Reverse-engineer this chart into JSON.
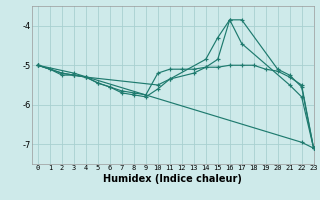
{
  "xlabel": "Humidex (Indice chaleur)",
  "bg_color": "#ceeaea",
  "grid_color": "#a8d0d0",
  "line_color": "#1e7a6e",
  "xlim": [
    -0.5,
    23
  ],
  "ylim": [
    -7.5,
    -3.5
  ],
  "yticks": [
    -7,
    -6,
    -5,
    -4
  ],
  "xticks": [
    0,
    1,
    2,
    3,
    4,
    5,
    6,
    7,
    8,
    9,
    10,
    11,
    12,
    13,
    14,
    15,
    16,
    17,
    18,
    19,
    20,
    21,
    22,
    23
  ],
  "series": [
    {
      "x": [
        0,
        3,
        22,
        23
      ],
      "y": [
        -5.0,
        -5.2,
        -6.95,
        -7.1
      ]
    },
    {
      "x": [
        0,
        1,
        2,
        3,
        4,
        10,
        11,
        13,
        14,
        15,
        16,
        17,
        20,
        21,
        22,
        23
      ],
      "y": [
        -5.0,
        -5.1,
        -5.25,
        -5.25,
        -5.3,
        -5.5,
        -5.35,
        -5.2,
        -5.05,
        -4.85,
        -3.85,
        -3.85,
        -5.1,
        -5.25,
        -5.55,
        -7.1
      ]
    },
    {
      "x": [
        0,
        2,
        3,
        4,
        5,
        6,
        7,
        8,
        9,
        10,
        11,
        14,
        15,
        16,
        17,
        21,
        22,
        23
      ],
      "y": [
        -5.0,
        -5.2,
        -5.25,
        -5.3,
        -5.45,
        -5.55,
        -5.7,
        -5.75,
        -5.8,
        -5.6,
        -5.35,
        -4.85,
        -4.3,
        -3.85,
        -4.45,
        -5.5,
        -5.8,
        -7.1
      ]
    },
    {
      "x": [
        0,
        2,
        3,
        4,
        5,
        6,
        7,
        8,
        9,
        10,
        11,
        12,
        13,
        14,
        15,
        16,
        17,
        18,
        19,
        20,
        21,
        22,
        23
      ],
      "y": [
        -5.0,
        -5.2,
        -5.25,
        -5.3,
        -5.45,
        -5.55,
        -5.65,
        -5.7,
        -5.75,
        -5.2,
        -5.1,
        -5.1,
        -5.1,
        -5.05,
        -5.05,
        -5.0,
        -5.0,
        -5.0,
        -5.1,
        -5.15,
        -5.3,
        -5.5,
        -7.1
      ]
    }
  ]
}
